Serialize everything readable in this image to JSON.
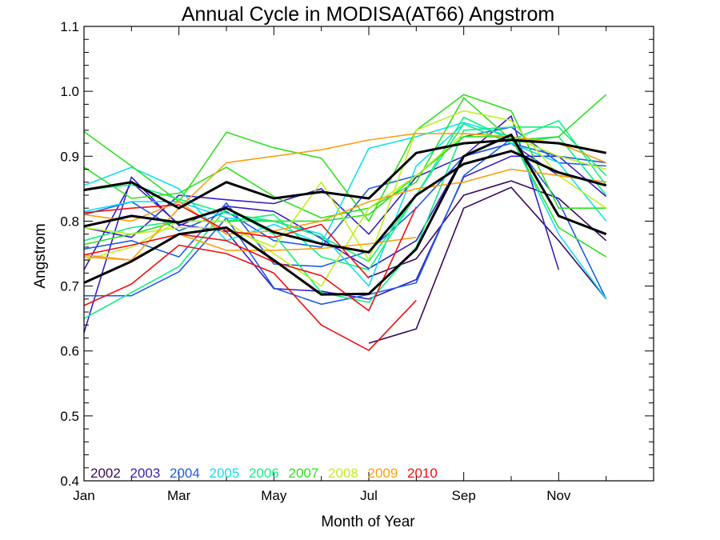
{
  "chart_data": {
    "type": "line",
    "title": "Annual Cycle in MODISA(AT66) Angstrom",
    "xlabel": "Month of Year",
    "ylabel": "Angstrom",
    "xlim": [
      1,
      13
    ],
    "ylim": [
      0.4,
      1.1
    ],
    "x_ticks": [
      {
        "value": 1,
        "label": "Jan"
      },
      {
        "value": 3,
        "label": "Mar"
      },
      {
        "value": 5,
        "label": "May"
      },
      {
        "value": 7,
        "label": "Jul"
      },
      {
        "value": 9,
        "label": "Sep"
      },
      {
        "value": 11,
        "label": "Nov"
      }
    ],
    "x_minor_ticks": [
      2,
      4,
      6,
      8,
      10,
      12
    ],
    "y_ticks": [
      {
        "value": 0.4,
        "label": "0.4"
      },
      {
        "value": 0.5,
        "label": "0.5"
      },
      {
        "value": 0.6,
        "label": "0.6"
      },
      {
        "value": 0.7,
        "label": "0.7"
      },
      {
        "value": 0.8,
        "label": "0.8"
      },
      {
        "value": 0.9,
        "label": "0.9"
      },
      {
        "value": 1.0,
        "label": "1.0"
      },
      {
        "value": 1.1,
        "label": "1.1"
      }
    ],
    "grid": false,
    "legend_position": "bottom-left",
    "x": [
      1,
      2,
      3,
      4,
      5,
      6,
      7,
      8,
      9,
      10,
      11,
      12
    ],
    "series": [
      {
        "name": "2002",
        "color": "#3a0a5e",
        "values": [
          null,
          null,
          null,
          null,
          null,
          null,
          0.612,
          0.634,
          0.82,
          0.852,
          0.77,
          0.68
        ]
      },
      {
        "name": "2002",
        "color": "#3a0a5e",
        "values": [
          null,
          null,
          null,
          null,
          null,
          null,
          0.714,
          0.742,
          0.84,
          0.862,
          0.835,
          0.77
        ]
      },
      {
        "name": "2003",
        "color": "#3a1fc0",
        "values": [
          0.628,
          0.868,
          0.793,
          0.823,
          0.815,
          0.773,
          0.727,
          0.77,
          0.9,
          0.962,
          0.725,
          null
        ]
      },
      {
        "name": "2003",
        "color": "#3a1fc0",
        "values": [
          0.725,
          0.86,
          0.795,
          0.784,
          0.696,
          0.692,
          0.68,
          0.71,
          0.868,
          0.9,
          0.9,
          0.838
        ]
      },
      {
        "name": "2003",
        "color": "#3a1fc0",
        "values": [
          0.79,
          0.775,
          0.84,
          0.833,
          0.827,
          0.85,
          0.78,
          0.868,
          0.9,
          0.92,
          0.87,
          0.86
        ]
      },
      {
        "name": "2004",
        "color": "#1e5ce8",
        "values": [
          0.685,
          0.685,
          0.722,
          0.805,
          0.697,
          0.672,
          0.687,
          0.705,
          0.87,
          0.927,
          0.83,
          0.68
        ]
      },
      {
        "name": "2004",
        "color": "#1e5ce8",
        "values": [
          0.757,
          0.77,
          0.745,
          0.828,
          0.734,
          0.73,
          0.754,
          0.82,
          0.9,
          0.92,
          0.9,
          0.89
        ]
      },
      {
        "name": "2004",
        "color": "#1e5ce8",
        "values": [
          0.81,
          0.83,
          0.785,
          0.815,
          0.77,
          0.76,
          0.85,
          0.87,
          0.93,
          0.945,
          0.89,
          0.885
        ]
      },
      {
        "name": "2005",
        "color": "#10e0f0",
        "values": [
          0.855,
          0.883,
          0.85,
          0.77,
          0.795,
          0.765,
          0.912,
          0.93,
          0.952,
          0.93,
          0.78,
          0.68
        ]
      },
      {
        "name": "2005",
        "color": "#10e0f0",
        "values": [
          0.815,
          0.83,
          0.83,
          0.805,
          0.8,
          0.78,
          0.7,
          0.885,
          0.95,
          0.92,
          0.89,
          0.8
        ]
      },
      {
        "name": "2006",
        "color": "#10f080",
        "values": [
          0.65,
          0.69,
          0.73,
          0.82,
          0.78,
          0.69,
          0.675,
          0.76,
          0.94,
          0.945,
          0.945,
          0.87
        ]
      },
      {
        "name": "2006",
        "color": "#10f080",
        "values": [
          0.77,
          0.79,
          0.8,
          0.8,
          0.81,
          0.745,
          0.725,
          0.84,
          0.95,
          0.92,
          0.93,
          0.84
        ]
      },
      {
        "name": "2006",
        "color": "#10f080",
        "values": [
          0.848,
          0.856,
          0.834,
          0.812,
          0.8,
          0.776,
          0.738,
          0.84,
          0.96,
          0.925,
          0.955,
          0.855
        ]
      },
      {
        "name": "2007",
        "color": "#30e020",
        "values": [
          0.938,
          0.885,
          0.83,
          0.937,
          0.913,
          0.897,
          0.8,
          0.94,
          0.995,
          0.97,
          0.82,
          0.82
        ]
      },
      {
        "name": "2007",
        "color": "#30e020",
        "values": [
          0.883,
          0.835,
          0.843,
          0.883,
          0.838,
          0.805,
          0.82,
          0.86,
          0.99,
          0.925,
          0.93,
          0.995
        ]
      },
      {
        "name": "2007",
        "color": "#30e020",
        "values": [
          0.764,
          0.78,
          0.8,
          0.8,
          0.8,
          0.8,
          0.81,
          0.87,
          0.93,
          0.93,
          0.79,
          0.745
        ]
      },
      {
        "name": "2008",
        "color": "#c0f020",
        "values": [
          0.79,
          0.78,
          0.79,
          0.79,
          0.76,
          0.86,
          0.74,
          0.94,
          0.97,
          0.955,
          0.87,
          0.82
        ]
      },
      {
        "name": "2008",
        "color": "#c0f020",
        "values": [
          0.74,
          0.76,
          0.8,
          0.8,
          0.75,
          0.7,
          0.82,
          0.87,
          0.935,
          0.93,
          0.9,
          0.88
        ]
      },
      {
        "name": "2009",
        "color": "#f8a010",
        "values": [
          0.748,
          0.74,
          0.82,
          0.89,
          0.9,
          0.91,
          0.925,
          0.935,
          0.935,
          0.93,
          0.92,
          0.89
        ]
      },
      {
        "name": "2009",
        "color": "#f8a010",
        "values": [
          0.745,
          0.74,
          0.78,
          0.755,
          0.755,
          0.758,
          0.765,
          0.775,
          null,
          null,
          null,
          0.738
        ]
      },
      {
        "name": "2009",
        "color": "#f8a010",
        "values": [
          0.81,
          0.8,
          0.83,
          0.78,
          0.785,
          0.8,
          0.83,
          0.85,
          0.86,
          0.88,
          0.87,
          0.86
        ]
      },
      {
        "name": "2010",
        "color": "#f01010",
        "values": [
          0.67,
          0.703,
          0.763,
          0.75,
          0.72,
          0.64,
          0.601,
          0.678,
          null,
          null,
          null,
          null
        ]
      },
      {
        "name": "2010",
        "color": "#f01010",
        "values": [
          0.748,
          0.763,
          0.78,
          0.77,
          0.737,
          0.716,
          0.662,
          0.822,
          null,
          null,
          null,
          null
        ]
      },
      {
        "name": "2010",
        "color": "#f01010",
        "values": [
          0.813,
          0.82,
          0.825,
          0.785,
          0.775,
          0.795,
          0.712,
          null,
          null,
          null,
          null,
          null
        ]
      },
      {
        "name": "",
        "color": "#000000",
        "width": 3,
        "values": [
          0.848,
          0.86,
          0.82,
          0.86,
          0.835,
          0.845,
          0.835,
          0.905,
          0.92,
          0.925,
          0.92,
          0.905
        ]
      },
      {
        "name": "",
        "color": "#000000",
        "width": 3,
        "values": [
          0.792,
          0.808,
          0.798,
          0.82,
          0.783,
          0.765,
          0.752,
          0.84,
          0.888,
          0.908,
          0.875,
          0.855
        ]
      },
      {
        "name": "",
        "color": "#000000",
        "width": 3,
        "values": [
          0.705,
          0.738,
          0.78,
          0.79,
          0.74,
          0.687,
          0.688,
          0.757,
          0.9,
          0.933,
          0.808,
          0.78
        ]
      }
    ],
    "legend": [
      {
        "name": "2002",
        "color": "#3a0a5e"
      },
      {
        "name": "2003",
        "color": "#3a1fc0"
      },
      {
        "name": "2004",
        "color": "#1e5ce8"
      },
      {
        "name": "2005",
        "color": "#10e0f0"
      },
      {
        "name": "2006",
        "color": "#10f080"
      },
      {
        "name": "2007",
        "color": "#30e020"
      },
      {
        "name": "2008",
        "color": "#c0f020"
      },
      {
        "name": "2009",
        "color": "#f8a010"
      },
      {
        "name": "2010",
        "color": "#f01010"
      }
    ]
  }
}
